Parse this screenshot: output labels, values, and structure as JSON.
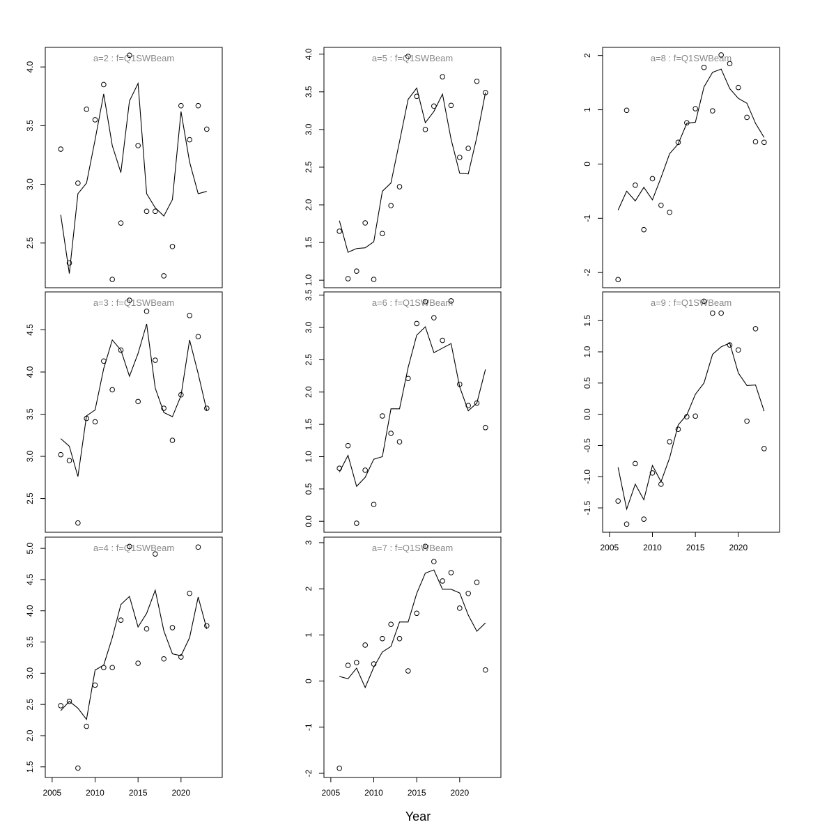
{
  "x_label": "Year",
  "chart_data": [
    {
      "type": "line",
      "title": "a=2 : f=Q1SWBeam",
      "x": [
        2006,
        2007,
        2008,
        2009,
        2010,
        2011,
        2012,
        2013,
        2014,
        2015,
        2016,
        2017,
        2018,
        2019,
        2020,
        2021,
        2022,
        2023
      ],
      "xlim": [
        2004.2,
        2024.8
      ],
      "ylim": [
        2.119,
        4.167
      ],
      "yticks": [
        2.5,
        {
          "value": 3,
          "label": "3.0"
        },
        3.5,
        {
          "value": 4,
          "label": "4.0"
        }
      ],
      "series": [
        {
          "type": "scatter",
          "color": "#000000",
          "values": [
            3.3,
            2.33,
            3.01,
            3.64,
            3.55,
            3.85,
            2.19,
            2.67,
            4.1,
            3.33,
            2.77,
            2.77,
            2.22,
            2.47,
            3.67,
            3.38,
            3.67,
            3.47
          ]
        },
        {
          "type": "line",
          "color": "#000000",
          "values": [
            2.74,
            2.24,
            2.92,
            3.01,
            3.38,
            3.77,
            3.33,
            3.1,
            3.71,
            3.86,
            2.92,
            2.8,
            2.73,
            2.87,
            3.62,
            3.19,
            2.92,
            2.94
          ]
        }
      ]
    },
    {
      "type": "line",
      "title": "a=3 : f=Q1SWBeam",
      "x": [
        2006,
        2007,
        2008,
        2009,
        2010,
        2011,
        2012,
        2013,
        2014,
        2015,
        2016,
        2017,
        2018,
        2019,
        2020,
        2021,
        2022,
        2023
      ],
      "xlim": [
        2004.2,
        2024.8
      ],
      "ylim": [
        2.1,
        4.95
      ],
      "yticks": [
        2.5,
        {
          "value": 3,
          "label": "3.0"
        },
        3.5,
        {
          "value": 4,
          "label": "4.0"
        },
        4.5
      ],
      "series": [
        {
          "type": "scatter",
          "color": "#000000",
          "values": [
            3.02,
            2.95,
            2.21,
            3.45,
            3.41,
            4.13,
            3.79,
            4.26,
            4.85,
            3.65,
            4.72,
            4.14,
            3.57,
            3.19,
            3.73,
            4.67,
            4.42,
            3.57
          ]
        },
        {
          "type": "line",
          "color": "#000000",
          "values": [
            3.21,
            3.12,
            2.76,
            3.48,
            3.55,
            4.04,
            4.38,
            4.26,
            3.95,
            4.22,
            4.57,
            3.81,
            3.52,
            3.47,
            3.72,
            4.38,
            3.98,
            3.54
          ]
        }
      ]
    },
    {
      "type": "line",
      "title": "a=4 : f=Q1SWBeam",
      "x": [
        2006,
        2007,
        2008,
        2009,
        2010,
        2011,
        2012,
        2013,
        2014,
        2015,
        2016,
        2017,
        2018,
        2019,
        2020,
        2021,
        2022,
        2023
      ],
      "xlim": [
        2004.2,
        2024.8
      ],
      "xticks": [
        2005,
        2010,
        2015,
        2020
      ],
      "ylim": [
        1.33,
        5.18
      ],
      "yticks": [
        1.5,
        {
          "value": 2,
          "label": "2.0"
        },
        2.5,
        {
          "value": 3,
          "label": "3.0"
        },
        3.5,
        {
          "value": 4,
          "label": "4.0"
        },
        4.5,
        {
          "value": 5,
          "label": "5.0"
        }
      ],
      "series": [
        {
          "type": "scatter",
          "color": "#000000",
          "values": [
            2.48,
            2.55,
            1.48,
            2.15,
            2.81,
            3.09,
            3.09,
            3.85,
            5.03,
            3.16,
            3.71,
            4.91,
            3.23,
            3.73,
            3.26,
            4.28,
            5.02,
            3.76
          ]
        },
        {
          "type": "line",
          "color": "#000000",
          "values": [
            2.4,
            2.55,
            2.44,
            2.26,
            3.05,
            3.13,
            3.57,
            4.1,
            4.23,
            3.74,
            3.96,
            4.33,
            3.68,
            3.31,
            3.28,
            3.57,
            4.22,
            3.71
          ]
        }
      ]
    },
    {
      "type": "line",
      "title": "a=5 : f=Q1SWBeam",
      "x": [
        2006,
        2007,
        2008,
        2009,
        2010,
        2011,
        2012,
        2013,
        2014,
        2015,
        2016,
        2017,
        2018,
        2019,
        2020,
        2021,
        2022,
        2023
      ],
      "xlim": [
        2004.2,
        2024.8
      ],
      "ylim": [
        0.9,
        4.09
      ],
      "yticks": [
        {
          "value": 1,
          "label": "1.0"
        },
        1.5,
        {
          "value": 2,
          "label": "2.0"
        },
        2.5,
        {
          "value": 3,
          "label": "3.0"
        },
        3.5,
        {
          "value": 4,
          "label": "4.0"
        }
      ],
      "series": [
        {
          "type": "scatter",
          "color": "#000000",
          "values": [
            1.65,
            1.02,
            1.12,
            1.76,
            1.01,
            1.62,
            1.99,
            2.24,
            3.97,
            3.44,
            3.0,
            3.31,
            3.7,
            3.32,
            2.63,
            2.75,
            3.64,
            3.49
          ]
        },
        {
          "type": "line",
          "color": "#000000",
          "values": [
            1.79,
            1.37,
            1.42,
            1.43,
            1.51,
            2.18,
            2.29,
            2.84,
            3.4,
            3.55,
            3.09,
            3.24,
            3.47,
            2.87,
            2.42,
            2.41,
            2.9,
            3.49
          ]
        }
      ]
    },
    {
      "type": "line",
      "title": "a=6 : f=Q1SWBeam",
      "x": [
        2006,
        2007,
        2008,
        2009,
        2010,
        2011,
        2012,
        2013,
        2014,
        2015,
        2016,
        2017,
        2018,
        2019,
        2020,
        2021,
        2022,
        2023
      ],
      "xlim": [
        2004.2,
        2024.8
      ],
      "ylim": [
        -0.17,
        3.55
      ],
      "yticks": [
        {
          "value": 0,
          "label": "0.0"
        },
        0.5,
        {
          "value": 1,
          "label": "1.0"
        },
        1.5,
        {
          "value": 2,
          "label": "2.0"
        },
        2.5,
        {
          "value": 3,
          "label": "3.0"
        },
        3.5
      ],
      "series": [
        {
          "type": "scatter",
          "color": "#000000",
          "values": [
            0.82,
            1.17,
            -0.03,
            0.79,
            0.26,
            1.63,
            1.36,
            1.23,
            2.21,
            3.06,
            3.4,
            3.15,
            2.8,
            3.41,
            2.12,
            1.79,
            1.83,
            1.45
          ]
        },
        {
          "type": "line",
          "color": "#000000",
          "values": [
            0.76,
            1.02,
            0.54,
            0.68,
            0.96,
            1.0,
            1.74,
            1.74,
            2.38,
            2.88,
            3.01,
            2.61,
            2.68,
            2.75,
            2.08,
            1.71,
            1.83,
            2.35
          ]
        }
      ]
    },
    {
      "type": "line",
      "title": "a=7 : f=Q1SWBeam",
      "x": [
        2006,
        2007,
        2008,
        2009,
        2010,
        2011,
        2012,
        2013,
        2014,
        2015,
        2016,
        2017,
        2018,
        2019,
        2020,
        2021,
        2022,
        2023
      ],
      "xlim": [
        2004.2,
        2024.8
      ],
      "xticks": [
        2005,
        2010,
        2015,
        2020
      ],
      "ylim": [
        -2.09,
        3.12
      ],
      "yticks": [
        -2,
        -1,
        0,
        1,
        2,
        3
      ],
      "series": [
        {
          "type": "scatter",
          "color": "#000000",
          "values": [
            -1.89,
            0.34,
            0.4,
            0.78,
            0.37,
            0.92,
            1.23,
            0.92,
            0.22,
            1.47,
            2.92,
            2.59,
            2.17,
            2.35,
            1.58,
            1.9,
            2.14,
            0.24
          ]
        },
        {
          "type": "line",
          "color": "#000000",
          "values": [
            0.1,
            0.05,
            0.28,
            -0.14,
            0.3,
            0.63,
            0.75,
            1.28,
            1.28,
            1.9,
            2.34,
            2.41,
            1.99,
            1.99,
            1.91,
            1.43,
            1.08,
            1.26
          ]
        }
      ]
    },
    {
      "type": "line",
      "title": "a=8 : f=Q1SWBeam",
      "x": [
        2006,
        2007,
        2008,
        2009,
        2010,
        2011,
        2012,
        2013,
        2014,
        2015,
        2016,
        2017,
        2018,
        2019,
        2020,
        2021,
        2022,
        2023
      ],
      "xlim": [
        2004.2,
        2024.8
      ],
      "ylim": [
        -2.28,
        2.15
      ],
      "yticks": [
        -2,
        -1,
        0,
        1,
        2
      ],
      "series": [
        {
          "type": "scatter",
          "color": "#000000",
          "values": [
            -2.13,
            0.99,
            -0.39,
            -1.21,
            -0.27,
            -0.76,
            -0.89,
            0.4,
            0.76,
            1.02,
            1.78,
            0.98,
            2.01,
            1.85,
            1.41,
            0.86,
            0.41,
            0.4
          ]
        },
        {
          "type": "line",
          "color": "#000000",
          "values": [
            -0.85,
            -0.5,
            -0.68,
            -0.43,
            -0.66,
            -0.25,
            0.19,
            0.37,
            0.75,
            0.77,
            1.42,
            1.69,
            1.75,
            1.39,
            1.21,
            1.12,
            0.75,
            0.49
          ]
        }
      ]
    },
    {
      "type": "line",
      "title": "a=9 : f=Q1SWBeam",
      "x": [
        2006,
        2007,
        2008,
        2009,
        2010,
        2011,
        2012,
        2013,
        2014,
        2015,
        2016,
        2017,
        2018,
        2019,
        2020,
        2021,
        2022,
        2023
      ],
      "xlim": [
        2004.2,
        2024.8
      ],
      "xticks": [
        2005,
        2010,
        2015,
        2020
      ],
      "ylim": [
        -1.89,
        1.96
      ],
      "yticks": [
        -1.5,
        {
          "value": -1,
          "label": "-1.0"
        },
        -0.5,
        {
          "value": 0,
          "label": "0.0"
        },
        0.5,
        {
          "value": 1,
          "label": "1.0"
        },
        1.5
      ],
      "series": [
        {
          "type": "scatter",
          "color": "#000000",
          "values": [
            -1.39,
            -1.76,
            -0.79,
            -1.68,
            -0.94,
            -1.12,
            -0.44,
            -0.24,
            -0.04,
            -0.03,
            1.81,
            1.62,
            1.62,
            1.11,
            1.03,
            -0.11,
            1.37,
            -0.55
          ]
        },
        {
          "type": "line",
          "color": "#000000",
          "values": [
            -0.85,
            -1.52,
            -1.12,
            -1.37,
            -0.82,
            -1.08,
            -0.7,
            -0.17,
            -0.01,
            0.32,
            0.5,
            0.96,
            1.08,
            1.14,
            0.66,
            0.46,
            0.47,
            0.05
          ]
        }
      ]
    }
  ]
}
